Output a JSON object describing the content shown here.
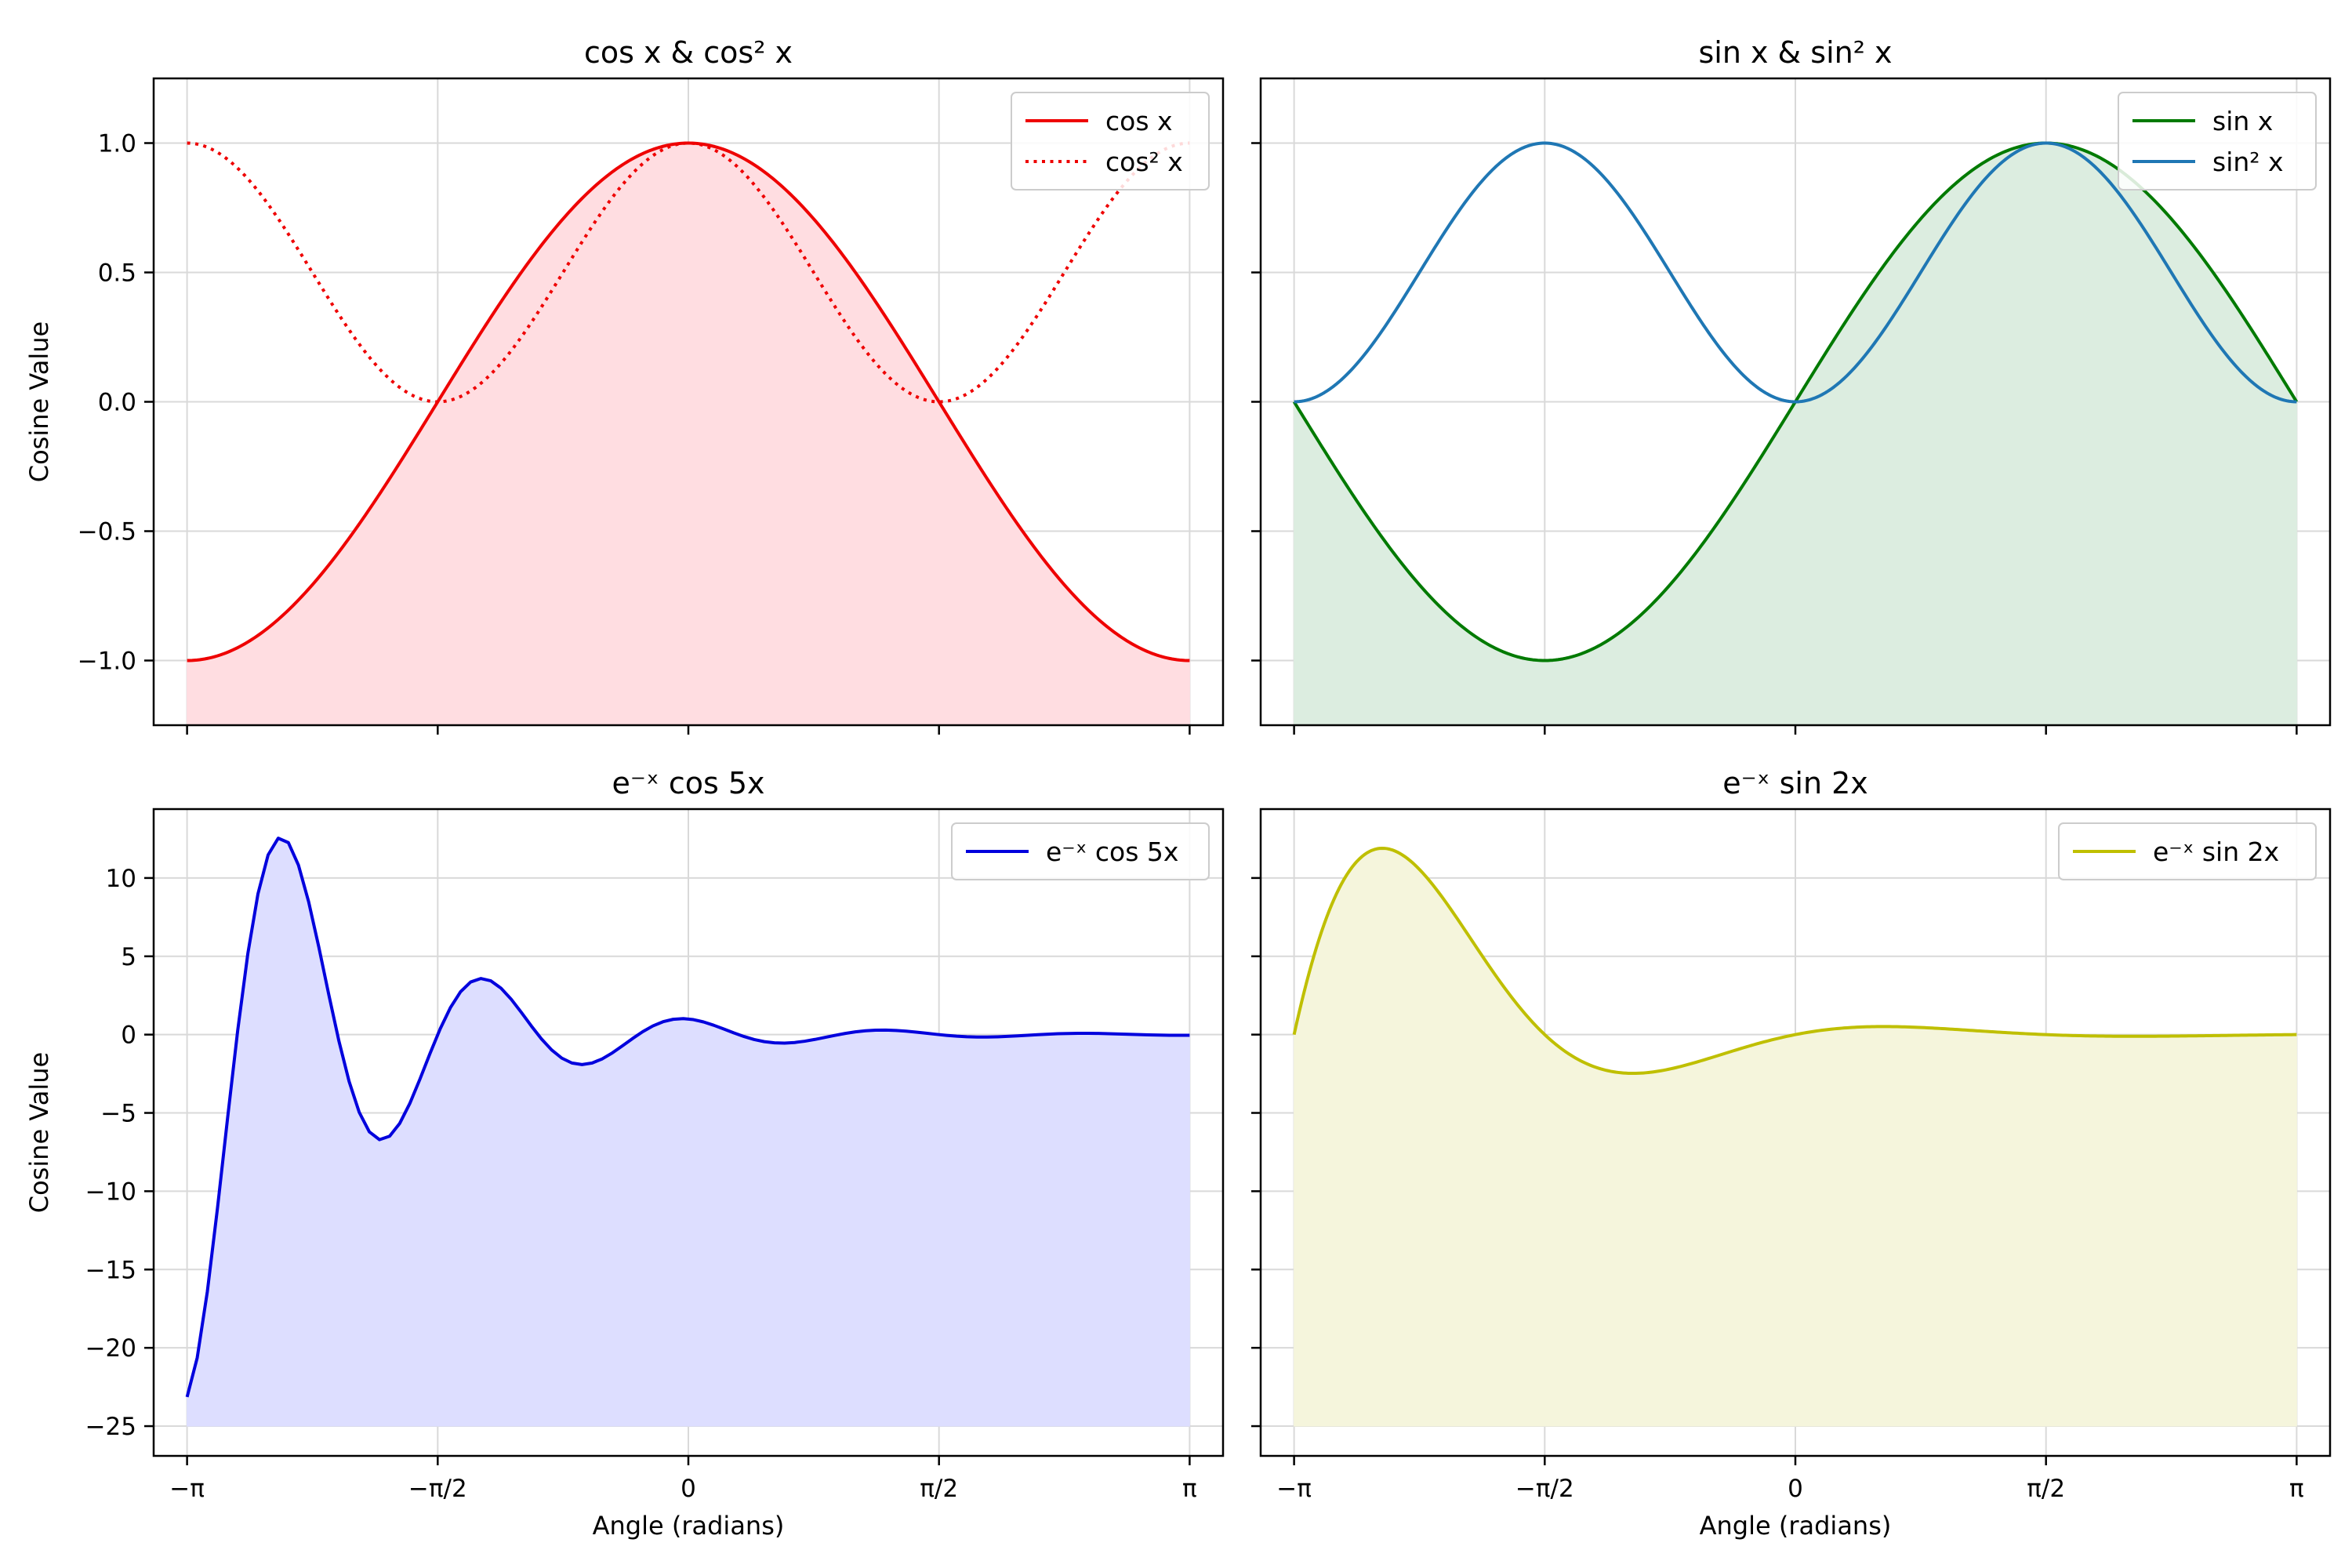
{
  "chart_data": [
    {
      "type": "line",
      "title": "cos x & cos² x",
      "ylabel": "Cosine Value",
      "xlabel": "",
      "xlim": [
        -3.351,
        3.351
      ],
      "ylim": [
        -1.25,
        1.25
      ],
      "xticks": [
        -3.14159,
        -1.5708,
        0,
        1.5708,
        3.14159
      ],
      "xtick_labels": [
        "",
        "",
        "",
        "",
        ""
      ],
      "yticks": [
        -1.0,
        -0.5,
        0.0,
        0.5,
        1.0
      ],
      "ytick_labels": [
        "−1.0",
        "−0.5",
        "0.0",
        "0.5",
        "1.0"
      ],
      "grid": true,
      "legend_position": "top-right",
      "fill": {
        "series": "cos x",
        "to": -1.25,
        "color": "#ffdde1"
      },
      "series": [
        {
          "name": "cos x",
          "function": "cos",
          "color": "#ee0000",
          "dash": "solid"
        },
        {
          "name": "cos² x",
          "function": "cos2",
          "color": "#ee0000",
          "dash": "dotted"
        }
      ]
    },
    {
      "type": "line",
      "title": "sin x & sin² x",
      "ylabel": "",
      "xlabel": "",
      "xlim": [
        -3.351,
        3.351
      ],
      "ylim": [
        -1.25,
        1.25
      ],
      "xticks": [
        -3.14159,
        -1.5708,
        0,
        1.5708,
        3.14159
      ],
      "xtick_labels": [
        "",
        "",
        "",
        "",
        ""
      ],
      "yticks": [
        -1.0,
        -0.5,
        0.0,
        0.5,
        1.0
      ],
      "ytick_labels": [
        "",
        "",
        "",
        "",
        ""
      ],
      "grid": true,
      "legend_position": "top-right",
      "fill": {
        "series": "sin x",
        "to": -1.25,
        "color": "#dcede0"
      },
      "series": [
        {
          "name": "sin x",
          "function": "sin",
          "color": "#007a00",
          "dash": "solid"
        },
        {
          "name": "sin² x",
          "function": "sin2",
          "color": "#1f77b4",
          "dash": "solid"
        }
      ]
    },
    {
      "type": "line",
      "title": "e⁻ˣ cos 5x",
      "ylabel": "Cosine Value",
      "xlabel": "Angle (radians)",
      "xlim": [
        -3.351,
        3.351
      ],
      "ylim": [
        -26.9,
        14.4
      ],
      "xticks": [
        -3.14159,
        -1.5708,
        0,
        1.5708,
        3.14159
      ],
      "xtick_labels": [
        "−π",
        "−π/2",
        "0",
        "π/2",
        "π"
      ],
      "yticks": [
        -25,
        -20,
        -15,
        -10,
        -5,
        0,
        5,
        10
      ],
      "ytick_labels": [
        "−25",
        "−20",
        "−15",
        "−10",
        "−5",
        "0",
        "5",
        "10"
      ],
      "grid": true,
      "legend_position": "top-right",
      "fill": {
        "series": "e⁻ˣ cos 5x",
        "to": -25,
        "color": "#dddeff"
      },
      "series": [
        {
          "name": "e⁻ˣ cos 5x",
          "function": "expcos5",
          "color": "#0000dd",
          "dash": "solid",
          "samples": 100
        }
      ]
    },
    {
      "type": "line",
      "title": "e⁻ˣ sin 2x",
      "ylabel": "",
      "xlabel": "Angle (radians)",
      "xlim": [
        -3.351,
        3.351
      ],
      "ylim": [
        -26.9,
        14.4
      ],
      "xticks": [
        -3.14159,
        -1.5708,
        0,
        1.5708,
        3.14159
      ],
      "xtick_labels": [
        "−π",
        "−π/2",
        "0",
        "π/2",
        "π"
      ],
      "yticks": [
        -25,
        -20,
        -15,
        -10,
        -5,
        0,
        5,
        10
      ],
      "ytick_labels": [
        "",
        "",
        "",
        "",
        "",
        "",
        "",
        ""
      ],
      "grid": true,
      "legend_position": "top-right",
      "fill": {
        "series": "e⁻ˣ sin 2x",
        "to": -25,
        "color": "#f5f5dc"
      },
      "series": [
        {
          "name": "e⁻ˣ sin 2x",
          "function": "expsin2",
          "color": "#bfbf00",
          "dash": "solid"
        }
      ]
    }
  ]
}
